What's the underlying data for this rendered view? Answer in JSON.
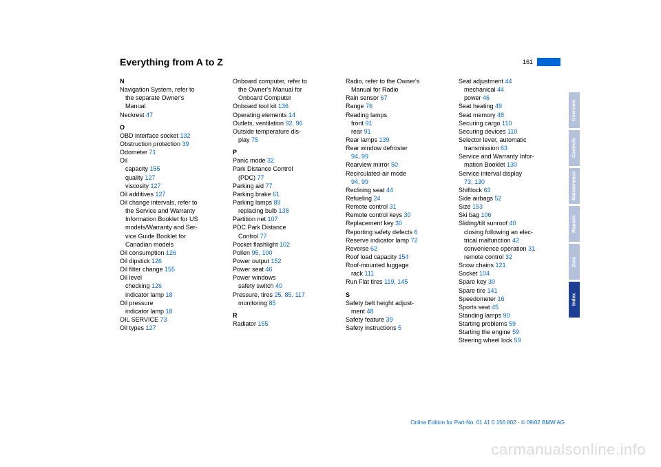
{
  "header": {
    "title": "Everything from A to Z",
    "page_num": "161"
  },
  "columns": [
    [
      {
        "t": "letter",
        "text": "N"
      },
      {
        "t": "entry",
        "text": "Navigation System, refer to"
      },
      {
        "t": "sub",
        "text": "the separate Owner's"
      },
      {
        "t": "sub",
        "text": "Manual"
      },
      {
        "t": "entry",
        "text": "Neckrest ",
        "pg": "47"
      },
      {
        "t": "letter",
        "text": "O"
      },
      {
        "t": "entry",
        "text": "OBD interface socket ",
        "pg": "132"
      },
      {
        "t": "entry",
        "text": "Obstruction protection ",
        "pg": "39"
      },
      {
        "t": "entry",
        "text": "Odometer ",
        "pg": "71"
      },
      {
        "t": "entry",
        "text": "Oil"
      },
      {
        "t": "sub",
        "text": "capacity ",
        "pg": "155"
      },
      {
        "t": "sub",
        "text": "quality ",
        "pg": "127"
      },
      {
        "t": "sub",
        "text": "viscosity ",
        "pg": "127"
      },
      {
        "t": "entry",
        "text": "Oil additives ",
        "pg": "127"
      },
      {
        "t": "entry",
        "text": "Oil change intervals, refer to"
      },
      {
        "t": "sub",
        "text": "the Service and Warranty"
      },
      {
        "t": "sub",
        "text": "Information Booklet for US"
      },
      {
        "t": "sub",
        "text": "models/Warranty and Ser-"
      },
      {
        "t": "sub",
        "text": "vice Guide Booklet for"
      },
      {
        "t": "sub",
        "text": "Canadian models"
      },
      {
        "t": "entry",
        "text": "Oil consumption ",
        "pg": "126"
      },
      {
        "t": "entry",
        "text": "Oil dipstick ",
        "pg": "126"
      },
      {
        "t": "entry",
        "text": "Oil filter change ",
        "pg": "155"
      },
      {
        "t": "entry",
        "text": "Oil level"
      },
      {
        "t": "sub",
        "text": "checking ",
        "pg": "126"
      },
      {
        "t": "sub",
        "text": "indicator lamp ",
        "pg": "18"
      },
      {
        "t": "entry",
        "text": "Oil pressure"
      },
      {
        "t": "sub",
        "text": "indicator lamp ",
        "pg": "18"
      },
      {
        "t": "entry",
        "text": "OIL SERVICE ",
        "pg": "73"
      },
      {
        "t": "entry",
        "text": "Oil types ",
        "pg": "127"
      }
    ],
    [
      {
        "t": "entry",
        "text": "Onboard computer, refer to"
      },
      {
        "t": "sub",
        "text": "the Owner's Manual for"
      },
      {
        "t": "sub",
        "text": "Onboard Computer"
      },
      {
        "t": "entry",
        "text": "Onboard tool kit ",
        "pg": "136"
      },
      {
        "t": "entry",
        "text": "Operating elements ",
        "pg": "14"
      },
      {
        "t": "entry",
        "text": "Outlets, ventilation ",
        "pg": "92, 96"
      },
      {
        "t": "entry",
        "text": "Outside temperature dis-"
      },
      {
        "t": "sub",
        "text": "play ",
        "pg": "75"
      },
      {
        "t": "letter",
        "text": "P"
      },
      {
        "t": "entry",
        "text": "Panic mode ",
        "pg": "32"
      },
      {
        "t": "entry",
        "text": "Park Distance Control"
      },
      {
        "t": "sub",
        "text": "(PDC) ",
        "pg": "77"
      },
      {
        "t": "entry",
        "text": "Parking aid ",
        "pg": "77"
      },
      {
        "t": "entry",
        "text": "Parking brake ",
        "pg": "61"
      },
      {
        "t": "entry",
        "text": "Parking lamps ",
        "pg": "89"
      },
      {
        "t": "sub",
        "text": "replacing bulb ",
        "pg": "138"
      },
      {
        "t": "entry",
        "text": "Partition net ",
        "pg": "107"
      },
      {
        "t": "entry",
        "text": "PDC Park Distance"
      },
      {
        "t": "sub",
        "text": "Control ",
        "pg": "77"
      },
      {
        "t": "entry",
        "text": "Pocket flashlight ",
        "pg": "102"
      },
      {
        "t": "entry",
        "text": "Pollen ",
        "pg": "95, 100"
      },
      {
        "t": "entry",
        "text": "Power output ",
        "pg": "152"
      },
      {
        "t": "entry",
        "text": "Power seat ",
        "pg": "46"
      },
      {
        "t": "entry",
        "text": "Power windows"
      },
      {
        "t": "sub",
        "text": "safety switch ",
        "pg": "40"
      },
      {
        "t": "entry",
        "text": "Pressure, tires ",
        "pg": "25, 85, 117"
      },
      {
        "t": "sub",
        "text": "monitoring ",
        "pg": "85"
      },
      {
        "t": "letter",
        "text": "R"
      },
      {
        "t": "entry",
        "text": "Radiator ",
        "pg": "155"
      }
    ],
    [
      {
        "t": "entry",
        "text": "Radio, refer to the Owner's"
      },
      {
        "t": "sub",
        "text": "Manual for Radio"
      },
      {
        "t": "entry",
        "text": "Rain sensor ",
        "pg": "67"
      },
      {
        "t": "entry",
        "text": "Range ",
        "pg": "76"
      },
      {
        "t": "entry",
        "text": "Reading lamps"
      },
      {
        "t": "sub",
        "text": "front ",
        "pg": "91"
      },
      {
        "t": "sub",
        "text": "rear ",
        "pg": "91"
      },
      {
        "t": "entry",
        "text": "Rear lamps ",
        "pg": "139"
      },
      {
        "t": "entry",
        "text": "Rear window defroster"
      },
      {
        "t": "sub",
        "text": "",
        "pg": "94, 99"
      },
      {
        "t": "entry",
        "text": "Rearview mirror ",
        "pg": "50"
      },
      {
        "t": "entry",
        "text": "Recirculated-air mode"
      },
      {
        "t": "sub",
        "text": "",
        "pg": "94, 99"
      },
      {
        "t": "entry",
        "text": "Reclining seat ",
        "pg": "44"
      },
      {
        "t": "entry",
        "text": "Refueling ",
        "pg": "24"
      },
      {
        "t": "entry",
        "text": "Remote control ",
        "pg": "31"
      },
      {
        "t": "entry",
        "text": "Remote control keys ",
        "pg": "30"
      },
      {
        "t": "entry",
        "text": "Replacement key ",
        "pg": "30"
      },
      {
        "t": "entry",
        "text": "Reporting safety defects ",
        "pg": "6"
      },
      {
        "t": "entry",
        "text": "Reserve indicator lamp ",
        "pg": "72"
      },
      {
        "t": "entry",
        "text": "Reverse ",
        "pg": "62"
      },
      {
        "t": "entry",
        "text": "Roof load capacity ",
        "pg": "154"
      },
      {
        "t": "entry",
        "text": "Roof-mounted luggage"
      },
      {
        "t": "sub",
        "text": "rack ",
        "pg": "111"
      },
      {
        "t": "entry",
        "text": "Run Flat tires ",
        "pg": "119, 145"
      },
      {
        "t": "letter",
        "text": "S"
      },
      {
        "t": "entry",
        "text": "Safety belt height adjust-"
      },
      {
        "t": "sub",
        "text": "ment ",
        "pg": "48"
      },
      {
        "t": "entry",
        "text": "Safety feature ",
        "pg": "39"
      },
      {
        "t": "entry",
        "text": "Safety instructions ",
        "pg": "5"
      }
    ],
    [
      {
        "t": "entry",
        "text": "Seat adjustment ",
        "pg": "44"
      },
      {
        "t": "sub",
        "text": "mechanical ",
        "pg": "44"
      },
      {
        "t": "sub",
        "text": "power ",
        "pg": "46"
      },
      {
        "t": "entry",
        "text": "Seat heating ",
        "pg": "49"
      },
      {
        "t": "entry",
        "text": "Seat memory ",
        "pg": "48"
      },
      {
        "t": "entry",
        "text": "Securing cargo ",
        "pg": "110"
      },
      {
        "t": "entry",
        "text": "Securing devices ",
        "pg": "110"
      },
      {
        "t": "entry",
        "text": "Selector lever, automatic"
      },
      {
        "t": "sub",
        "text": "transmission ",
        "pg": "63"
      },
      {
        "t": "entry",
        "text": "Service and Warranty Infor-"
      },
      {
        "t": "sub",
        "text": "mation Booklet ",
        "pg": "130"
      },
      {
        "t": "entry",
        "text": "Service interval display"
      },
      {
        "t": "sub",
        "text": "",
        "pg": "73, 130"
      },
      {
        "t": "entry",
        "text": "Shiftlock ",
        "pg": "63"
      },
      {
        "t": "entry",
        "text": "Side airbags ",
        "pg": "52"
      },
      {
        "t": "entry",
        "text": "Size ",
        "pg": "153"
      },
      {
        "t": "entry",
        "text": "Ski bag ",
        "pg": "106"
      },
      {
        "t": "entry",
        "text": "Sliding/tilt sunroof ",
        "pg": "40"
      },
      {
        "t": "sub",
        "text": "closing following an elec-"
      },
      {
        "t": "sub",
        "text": "trical malfunction ",
        "pg": "42"
      },
      {
        "t": "sub",
        "text": "convenience operation ",
        "pg": "31"
      },
      {
        "t": "sub",
        "text": "remote control ",
        "pg": "32"
      },
      {
        "t": "entry",
        "text": "Snow chains ",
        "pg": "121"
      },
      {
        "t": "entry",
        "text": "Socket ",
        "pg": "104"
      },
      {
        "t": "entry",
        "text": "Spare key ",
        "pg": "30"
      },
      {
        "t": "entry",
        "text": "Spare tire ",
        "pg": "141"
      },
      {
        "t": "entry",
        "text": "Speedometer ",
        "pg": "16"
      },
      {
        "t": "entry",
        "text": "Sports seat ",
        "pg": "45"
      },
      {
        "t": "entry",
        "text": "Standing lamps ",
        "pg": "90"
      },
      {
        "t": "entry",
        "text": "Starting problems ",
        "pg": "59"
      },
      {
        "t": "entry",
        "text": "Starting the engine ",
        "pg": "59"
      },
      {
        "t": "entry",
        "text": "Steering wheel lock ",
        "pg": "59"
      }
    ]
  ],
  "tabs": [
    {
      "label": "Overview",
      "active": false
    },
    {
      "label": "Controls",
      "active": false
    },
    {
      "label": "Maintenance",
      "active": false
    },
    {
      "label": "Repairs",
      "active": false
    },
    {
      "label": "Data",
      "active": false
    },
    {
      "label": "Index",
      "active": true
    }
  ],
  "footer": "Online Edition for Part-No. 01 41 0 156 802 - © 09/02 BMW AG",
  "watermark": "carmanualsonline.info"
}
